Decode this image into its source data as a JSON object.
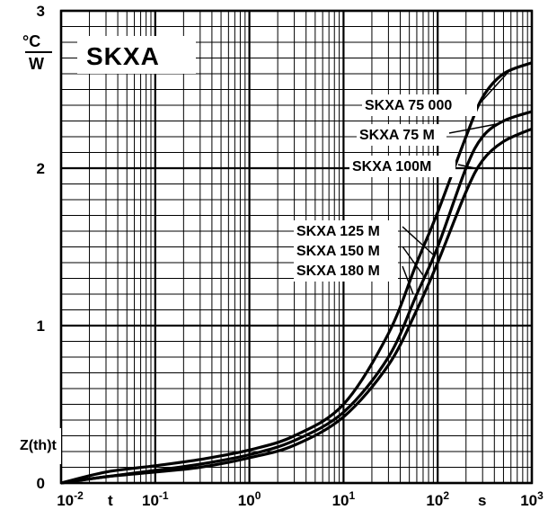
{
  "chart_data": {
    "type": "line",
    "title": "SKXA",
    "ylabel": "Z(th)t",
    "yunit_top": "°C",
    "yunit_bottom": "W",
    "xunit": "s",
    "xvar": "t",
    "xscale": "log",
    "xlim": [
      0.01,
      1000
    ],
    "ylim": [
      0,
      3
    ],
    "grid": true,
    "x_tick_labels": [
      "10-2",
      "10-1",
      "100",
      "101",
      "102",
      "103"
    ],
    "y_tick_labels": [
      "0",
      "1",
      "2",
      "3"
    ],
    "legend_groups": [
      {
        "lines": [
          "SKXA 75 000"
        ]
      },
      {
        "lines": [
          "SKXA 75 M"
        ]
      },
      {
        "lines": [
          "SKXA 100M"
        ]
      },
      {
        "lines": [
          "SKXA 125 M",
          "SKXA 150 M",
          "SKXA 180 M"
        ]
      }
    ],
    "series": [
      {
        "name": "SKXA 75 000",
        "x": [
          0.01,
          0.03,
          0.1,
          0.3,
          1,
          3,
          10,
          30,
          60,
          100,
          200,
          300,
          500,
          1000
        ],
        "y": [
          0.0,
          0.07,
          0.11,
          0.15,
          0.21,
          0.3,
          0.5,
          0.95,
          1.4,
          1.72,
          2.2,
          2.45,
          2.6,
          2.67
        ]
      },
      {
        "name": "SKXA 75 M",
        "x": [
          0.01,
          0.03,
          0.1,
          0.3,
          1,
          3,
          10,
          30,
          60,
          100,
          200,
          300,
          500,
          1000
        ],
        "y": [
          0.0,
          0.04,
          0.08,
          0.12,
          0.18,
          0.27,
          0.45,
          0.8,
          1.2,
          1.5,
          2.0,
          2.2,
          2.3,
          2.36
        ]
      },
      {
        "name": "SKXA 100M",
        "x": [
          0.01,
          0.03,
          0.1,
          0.3,
          1,
          3,
          10,
          30,
          60,
          100,
          200,
          300,
          500,
          1000
        ],
        "y": [
          0.0,
          0.04,
          0.07,
          0.1,
          0.16,
          0.24,
          0.42,
          0.75,
          1.1,
          1.4,
          1.85,
          2.05,
          2.17,
          2.25
        ]
      }
    ]
  }
}
